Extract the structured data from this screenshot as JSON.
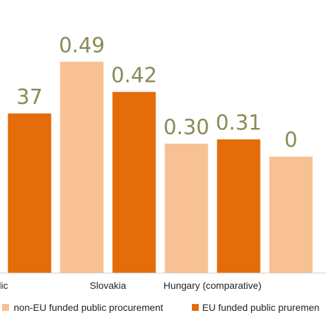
{
  "chart_data": {
    "type": "bar",
    "categories": [
      "lic",
      "Slovakia",
      "Hungary (comparative)",
      ""
    ],
    "series": [
      {
        "name": "non-EU funded public procurement",
        "color": "#f8c193",
        "values": [
          null,
          0.49,
          0.3,
          0.27
        ],
        "labels": [
          "",
          "0.49",
          "0.30",
          "0"
        ]
      },
      {
        "name": "EU funded public pruremen",
        "color": "#e46c0a",
        "values": [
          0.37,
          0.42,
          0.31,
          null
        ],
        "labels": [
          "37",
          "0.42",
          "0.31",
          ""
        ]
      }
    ],
    "ylim": [
      0,
      0.6
    ],
    "grid": false,
    "legend": "bottom"
  }
}
